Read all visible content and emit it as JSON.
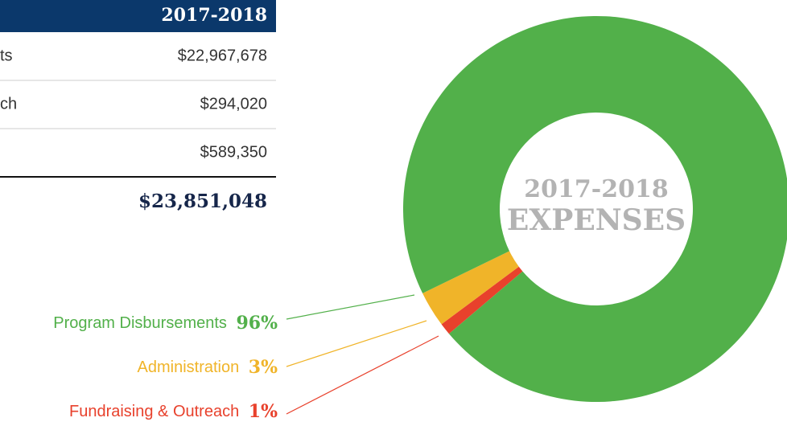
{
  "table": {
    "header": "2017-2018",
    "rows": [
      {
        "label": "ts",
        "amount": "$22,967,678"
      },
      {
        "label": "ch",
        "amount": "$294,020"
      },
      {
        "amount": "$589,350"
      }
    ],
    "total": "$23,851,048"
  },
  "chart_data": {
    "type": "donut",
    "center_text": [
      "2017-2018",
      "EXPENSES"
    ],
    "categories": [
      "Program Disbursements",
      "Administration",
      "Fundraising & Outreach"
    ],
    "values": [
      96,
      3,
      1
    ],
    "value_labels": [
      "96%",
      "3%",
      "1%"
    ],
    "colors": [
      "#52b04a",
      "#f0b429",
      "#e8412c"
    ]
  }
}
